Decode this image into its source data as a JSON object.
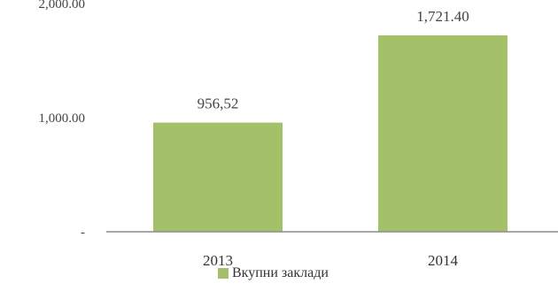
{
  "chart_data": {
    "type": "bar",
    "categories": [
      "2013",
      "2014"
    ],
    "values": [
      956.52,
      1721.4
    ],
    "value_labels": [
      "956,52",
      "1,721.40"
    ],
    "yticks": [
      0,
      1000,
      2000
    ],
    "ytick_labels": [
      "-",
      "1,000.00",
      "2,000.00"
    ],
    "ylim": [
      0,
      2000
    ],
    "series": [
      {
        "name": "Вкупни заклади",
        "values": [
          956.52,
          1721.4
        ]
      }
    ],
    "legend_position": "bottom",
    "grid": false,
    "bar_color": "#a4c16a",
    "axis_color": "#8c8c8c"
  }
}
